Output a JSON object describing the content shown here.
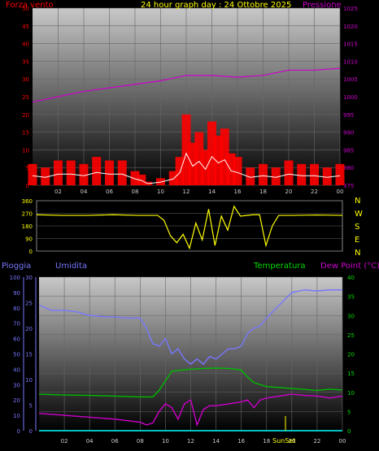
{
  "header": {
    "title": "24 hour graph day : 24 Ottobre 2025",
    "left_label": "Forza vento",
    "right_label": "Pressione"
  },
  "bottom_header": {
    "rain_label": "Pioggia",
    "hum_label": "Umidita",
    "temp_label": "Temperatura",
    "dew_label": "Dew Point (°C)",
    "sunset_label": "SunSet"
  },
  "colors": {
    "wind": "#ff0000",
    "gust": "#ff0000",
    "avg_wind": "#ffffff",
    "pressure": "#cc00cc",
    "direction": "#ffff00",
    "rain": "#00ffff",
    "humidity": "#7777ff",
    "temperature": "#00bb00",
    "dewpoint": "#cc00cc",
    "title": "#ffff00",
    "grid": "#666666"
  },
  "chart_data": [
    {
      "type": "line",
      "title": "24 hour graph day : 24 Ottobre 2025",
      "x_ticks": [
        "02",
        "04",
        "06",
        "08",
        "10",
        "12",
        "14",
        "16",
        "18",
        "20",
        "22",
        "00"
      ],
      "xlim": [
        0,
        24
      ],
      "left_axis": {
        "label": "Forza vento",
        "ticks": [
          0,
          5,
          10,
          15,
          20,
          25,
          30,
          35,
          40,
          45,
          50
        ],
        "range": [
          0,
          50
        ]
      },
      "right_axis": {
        "label": "Pressione",
        "ticks": [
          975,
          980,
          985,
          990,
          995,
          1000,
          1005,
          1010,
          1015,
          1020,
          1025
        ],
        "range": [
          975,
          1025
        ]
      },
      "series": [
        {
          "name": "Forza vento",
          "axis": "left",
          "color": "#ff0000",
          "x": [
            0,
            1,
            2,
            3,
            4,
            5,
            6,
            7,
            8,
            8.5,
            9,
            10,
            11,
            11.5,
            12,
            12.5,
            13,
            13.5,
            14,
            14.5,
            15,
            15.5,
            16,
            17,
            18,
            19,
            20,
            21,
            22,
            23,
            24
          ],
          "y": [
            6,
            5,
            7,
            7,
            6,
            8,
            7,
            7,
            4,
            3,
            1,
            2,
            4,
            8,
            20,
            12,
            15,
            10,
            18,
            14,
            16,
            9,
            8,
            5,
            6,
            5,
            7,
            6,
            6,
            5,
            6
          ]
        },
        {
          "name": "Pressione",
          "axis": "right",
          "color": "#cc00cc",
          "x": [
            0,
            2,
            4,
            6,
            8,
            10,
            12,
            14,
            16,
            18,
            20,
            22,
            24
          ],
          "y": [
            998.5,
            1000,
            1001.5,
            1002.5,
            1003.5,
            1004.5,
            1006,
            1006,
            1005.5,
            1006,
            1007.5,
            1007.5,
            1008
          ]
        }
      ]
    },
    {
      "type": "scatter",
      "title": "",
      "y_ticks": [
        0,
        90,
        180,
        270,
        360
      ],
      "ylim": [
        0,
        360
      ],
      "compass": [
        "N",
        "W",
        "S",
        "E",
        "N"
      ],
      "series": [
        {
          "name": "",
          "color": "#ffff00",
          "x": [
            0,
            2,
            4,
            6,
            8,
            9.5,
            10,
            10.5,
            11,
            11.5,
            12,
            12.5,
            13,
            13.5,
            14,
            14.5,
            15,
            15.5,
            16,
            17,
            17.5,
            18,
            18.5,
            19,
            20,
            22,
            24
          ],
          "y": [
            260,
            255,
            255,
            260,
            255,
            255,
            220,
            110,
            60,
            120,
            20,
            200,
            80,
            300,
            40,
            250,
            150,
            320,
            250,
            260,
            260,
            40,
            180,
            255,
            255,
            258,
            255
          ]
        }
      ]
    },
    {
      "type": "line",
      "title": "",
      "x_ticks": [
        "02",
        "04",
        "06",
        "08",
        "10",
        "12",
        "14",
        "16",
        "18",
        "20",
        "22",
        "00"
      ],
      "xlim": [
        0,
        24
      ],
      "rain_axis": {
        "ticks": [
          0,
          10,
          20,
          30,
          40,
          50,
          60,
          70,
          80,
          90,
          100
        ],
        "range": [
          0,
          100
        ]
      },
      "hum_axis": {
        "ticks": [
          0,
          5,
          10,
          15,
          20,
          25,
          30
        ],
        "range": [
          0,
          30
        ]
      },
      "temp_axis": {
        "ticks": [
          0,
          5,
          10,
          15,
          20,
          25,
          30,
          35,
          40
        ],
        "range": [
          0,
          40
        ]
      },
      "series": [
        {
          "name": "Umidita",
          "axis": "hum",
          "color": "#7777ff",
          "x": [
            0,
            1,
            2,
            3,
            4,
            5,
            6,
            7,
            8,
            8.5,
            9,
            9.5,
            10,
            10.5,
            11,
            11.5,
            12,
            12.5,
            13,
            13.5,
            14,
            14.5,
            15,
            15.5,
            16,
            16.5,
            17,
            17.5,
            18,
            19,
            20,
            21,
            22,
            23,
            24
          ],
          "y": [
            24.5,
            23.5,
            23.5,
            23.2,
            22.5,
            22.3,
            22.2,
            22,
            22,
            20,
            17,
            16.5,
            18,
            15,
            16,
            14,
            13,
            14,
            13,
            14.5,
            14,
            15,
            16,
            16,
            16.5,
            19,
            20,
            20.5,
            22,
            24.5,
            27,
            27.5,
            27.3,
            27.5,
            27.5
          ]
        },
        {
          "name": "Temperatura",
          "axis": "temp",
          "color": "#00bb00",
          "x": [
            0,
            2,
            4,
            6,
            8,
            9,
            9.5,
            10,
            10.5,
            11,
            12,
            13,
            14,
            15,
            16,
            16.5,
            17,
            18,
            20,
            22,
            23,
            24
          ],
          "y": [
            9.5,
            9.3,
            9.2,
            9,
            8.8,
            8.8,
            10.5,
            13,
            15.5,
            15.7,
            16,
            16.2,
            16.3,
            16.2,
            15.8,
            14,
            12.5,
            11.5,
            11,
            10.5,
            10.8,
            10.6
          ]
        },
        {
          "name": "Dew Point (°C)",
          "axis": "temp",
          "color": "#cc00cc",
          "x": [
            0,
            2,
            4,
            6,
            8,
            8.5,
            9,
            9.5,
            10,
            10.5,
            11,
            11.5,
            12,
            12.5,
            13,
            13.5,
            14,
            15,
            16,
            16.5,
            17,
            17.5,
            18,
            19,
            20,
            21,
            22,
            23,
            24
          ],
          "y": [
            4.5,
            4,
            3.5,
            3,
            2.2,
            1.5,
            2,
            5,
            7,
            6,
            3,
            7,
            8,
            1.5,
            5.5,
            6.5,
            6.5,
            7,
            7.5,
            8,
            6,
            8,
            8.5,
            9,
            9.5,
            9.2,
            9,
            8.5,
            9
          ]
        },
        {
          "name": "Pioggia",
          "axis": "rain",
          "color": "#00ffff",
          "x": [
            0,
            24
          ],
          "y": [
            0,
            0
          ]
        }
      ]
    }
  ]
}
